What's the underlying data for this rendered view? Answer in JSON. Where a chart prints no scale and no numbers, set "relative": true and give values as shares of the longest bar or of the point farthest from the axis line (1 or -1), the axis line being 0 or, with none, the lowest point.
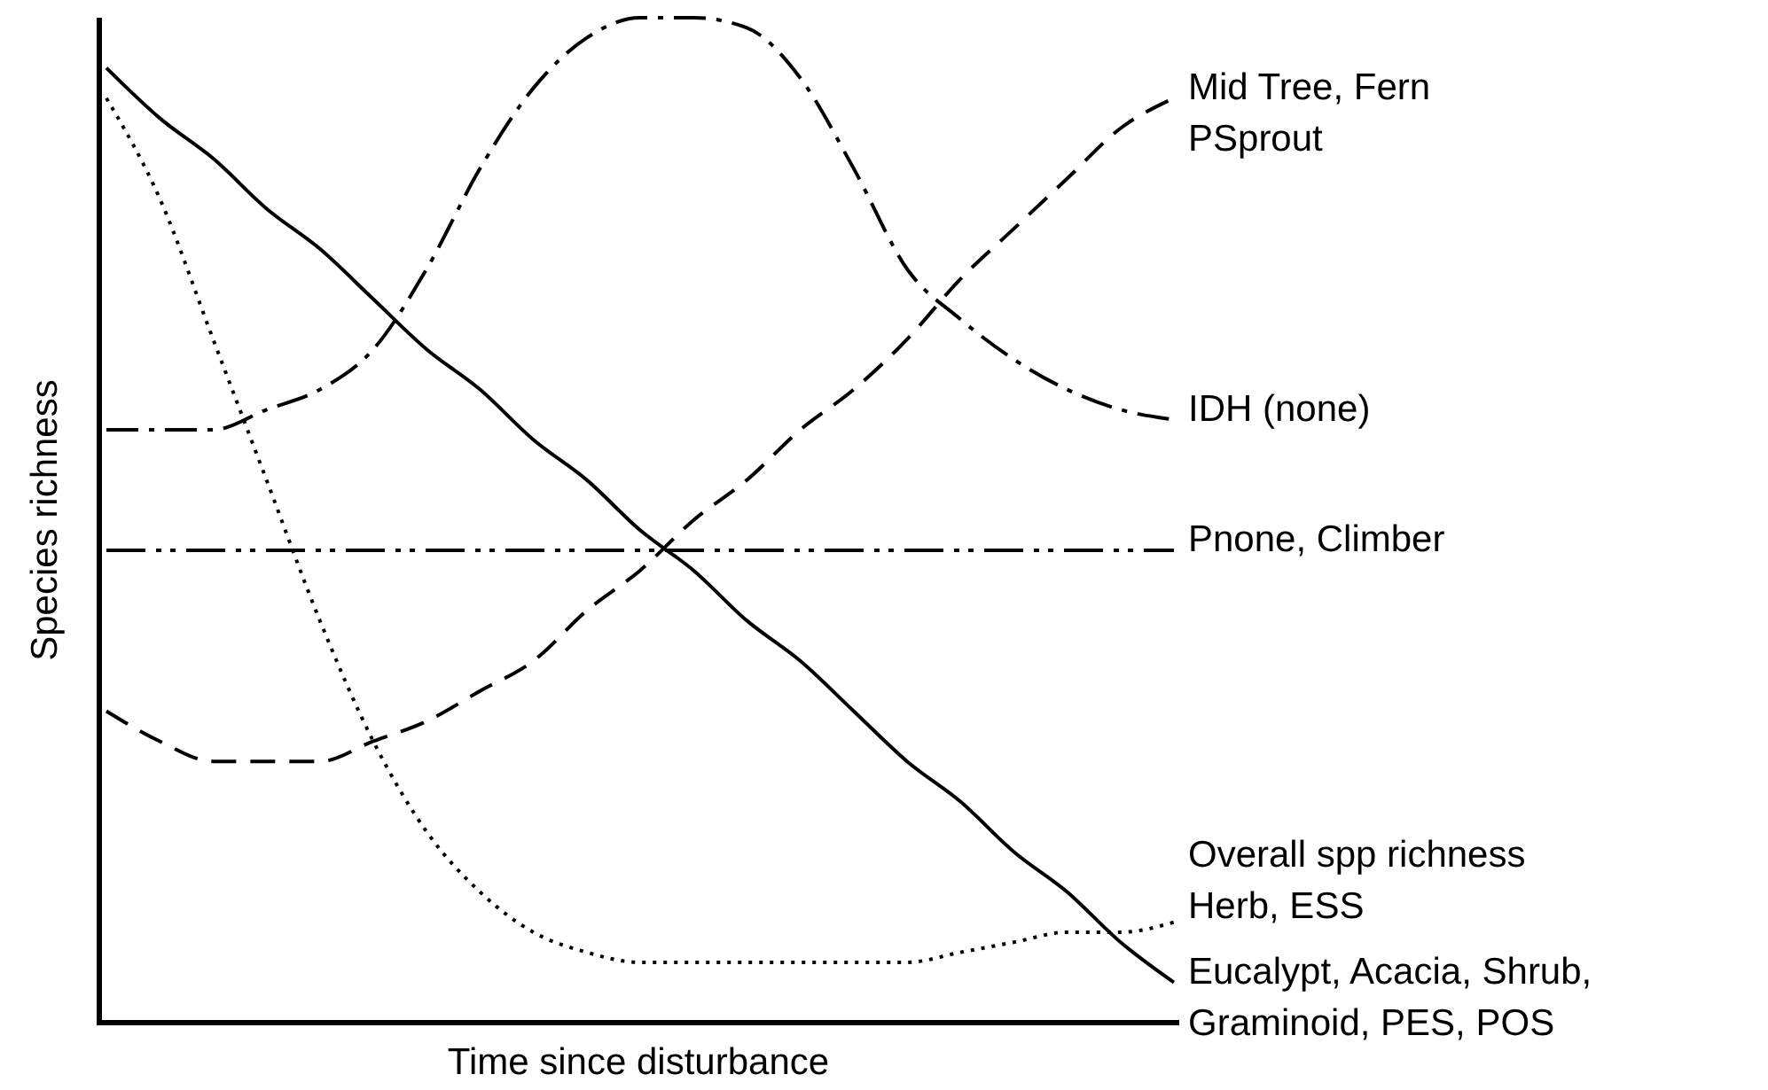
{
  "chart_data": {
    "type": "line",
    "relative": true,
    "xlabel": "Time since disturbance",
    "ylabel": "Species richness",
    "categories": [
      null,
      null,
      null,
      null,
      null,
      null,
      null,
      null,
      null,
      null,
      null,
      null,
      null,
      null,
      null,
      null,
      null,
      null,
      null,
      null,
      null
    ],
    "marker": "none",
    "series": [
      {
        "name": "Mid Tree, Fern\nPSprout",
        "color": "#000000",
        "line_style": "dashed",
        "values": [
          0.31,
          0.28,
          0.26,
          0.26,
          0.26,
          0.28,
          0.3,
          0.33,
          0.36,
          0.41,
          0.45,
          0.5,
          0.54,
          0.59,
          0.63,
          0.68,
          0.74,
          0.79,
          0.84,
          0.89,
          0.92
        ]
      },
      {
        "name": "IDH (none)",
        "color": "#000000",
        "line_style": "dashdot",
        "values": [
          0.59,
          0.59,
          0.59,
          0.61,
          0.63,
          0.67,
          0.75,
          0.85,
          0.93,
          0.98,
          1.0,
          1.0,
          0.99,
          0.94,
          0.85,
          0.75,
          0.7,
          0.66,
          0.63,
          0.61,
          0.6
        ]
      },
      {
        "name": "Pnone, Climber",
        "color": "#000000",
        "line_style": "dashdotdot",
        "values": [
          0.47,
          0.47,
          0.47,
          0.47,
          0.47,
          0.47,
          0.47,
          0.47,
          0.47,
          0.47,
          0.47,
          0.47,
          0.47,
          0.47,
          0.47,
          0.47,
          0.47,
          0.47,
          0.47,
          0.47,
          0.47
        ]
      },
      {
        "name": "Overall spp richness\nHerb, ESS",
        "color": "#000000",
        "line_style": "dotted",
        "values": [
          0.92,
          0.82,
          0.68,
          0.54,
          0.4,
          0.28,
          0.19,
          0.13,
          0.09,
          0.07,
          0.06,
          0.06,
          0.06,
          0.06,
          0.06,
          0.06,
          0.07,
          0.08,
          0.09,
          0.09,
          0.1
        ]
      },
      {
        "name": "Eucalypt, Acacia, Shrub,\nGraminoid, PES, POS",
        "color": "#000000",
        "line_style": "solid",
        "values": [
          0.95,
          0.9,
          0.86,
          0.81,
          0.77,
          0.72,
          0.67,
          0.63,
          0.58,
          0.54,
          0.49,
          0.45,
          0.4,
          0.36,
          0.31,
          0.26,
          0.22,
          0.17,
          0.13,
          0.08,
          0.04
        ]
      }
    ]
  }
}
